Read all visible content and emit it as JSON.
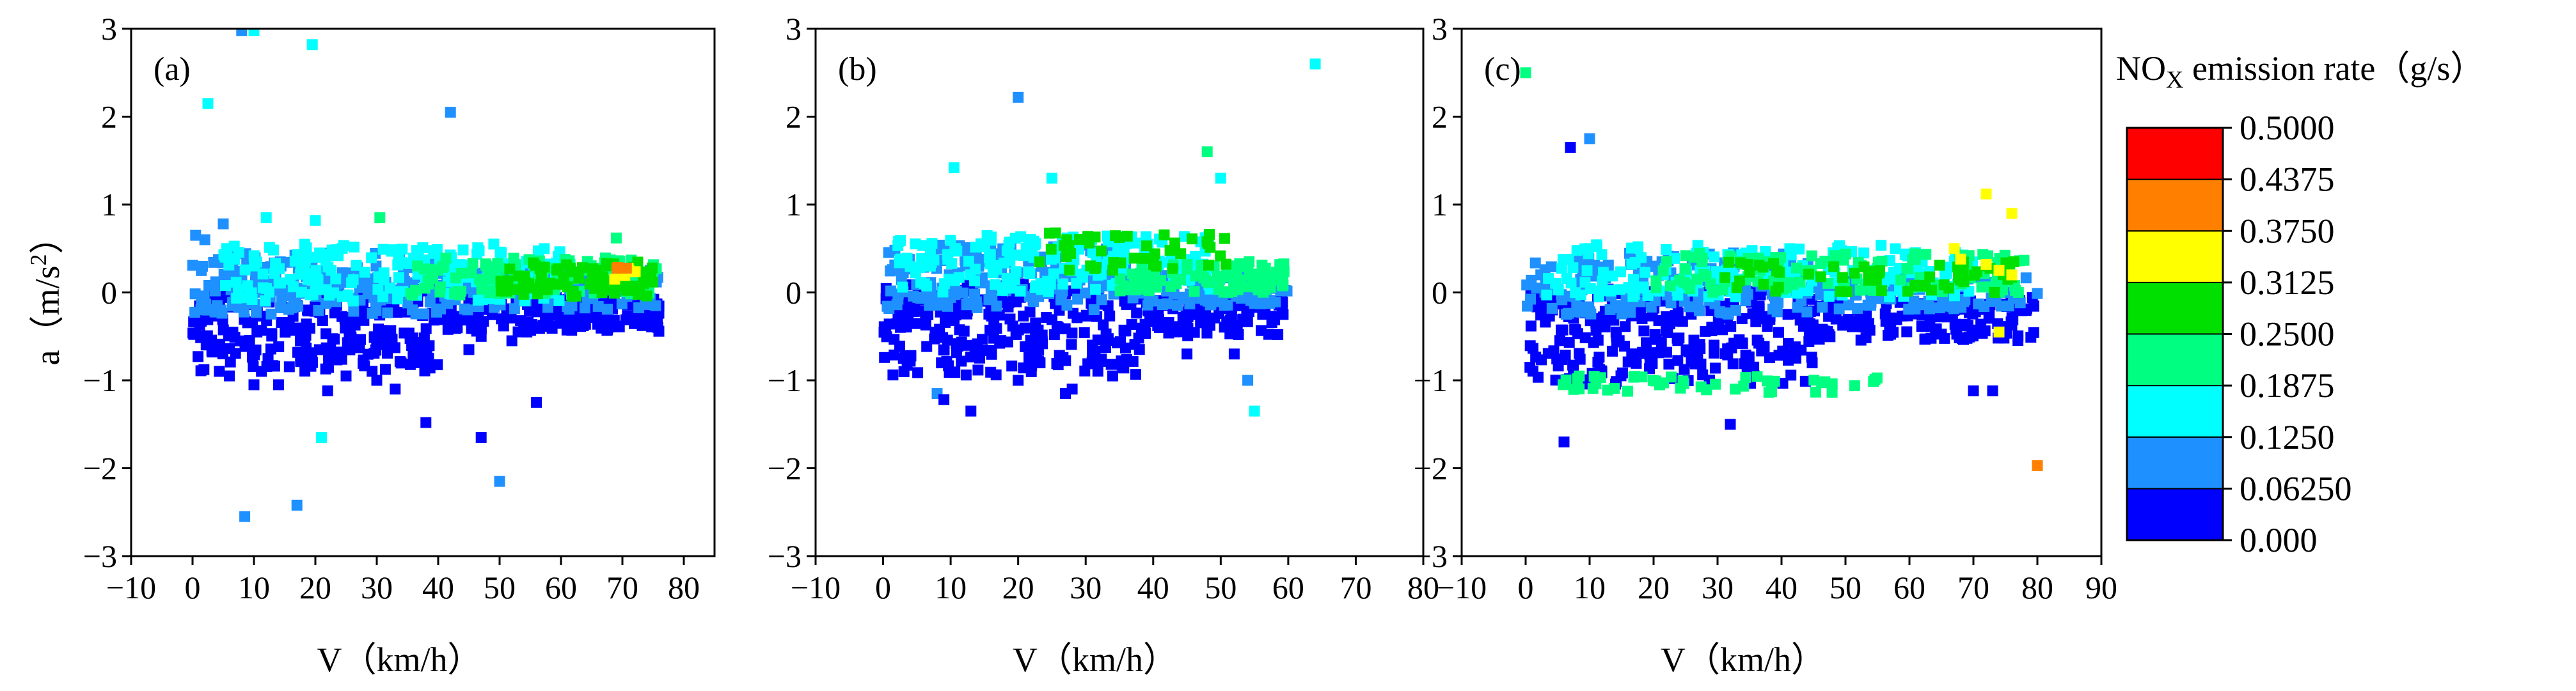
{
  "figure": {
    "colorbar": {
      "title_main": "NO",
      "title_sub": "X",
      "title_rest": " emission rate（g/s）",
      "levels": [
        "0.000",
        "0.06250",
        "0.1250",
        "0.1875",
        "0.2500",
        "0.3125",
        "0.3750",
        "0.4375",
        "0.5000"
      ],
      "colors": [
        "#0000FF",
        "#1E90FF",
        "#00FFFF",
        "#00FF80",
        "#00E000",
        "#FFFF00",
        "#FF8000",
        "#FF0000"
      ]
    }
  },
  "chart_data": [
    {
      "type": "scatter",
      "panel_label": "(a)",
      "xlabel": "V（km/h）",
      "ylabel_main": "a（m/s",
      "ylabel_sup": "2",
      "ylabel_end": "）",
      "xlim": [
        -10,
        85
      ],
      "ylim": [
        -3,
        3
      ],
      "xticks": [
        "−10",
        "0",
        "10",
        "20",
        "30",
        "40",
        "50",
        "60",
        "70",
        "80"
      ],
      "yticks": [
        "−3",
        "−2",
        "−1",
        "0",
        "1",
        "2",
        "3"
      ],
      "points": [
        [
          8,
          2.98,
          1
        ],
        [
          10,
          2.98,
          2
        ],
        [
          19.5,
          2.82,
          2
        ],
        [
          2.5,
          2.15,
          2
        ],
        [
          42,
          2.05,
          1
        ],
        [
          21,
          -1.65,
          2
        ],
        [
          17,
          -2.42,
          1
        ],
        [
          8.5,
          -2.55,
          1
        ],
        [
          38,
          -1.48,
          0
        ],
        [
          47,
          -1.65,
          0
        ],
        [
          50,
          -2.15,
          1
        ],
        [
          56,
          -1.25,
          0
        ],
        [
          30.5,
          0.85,
          3
        ],
        [
          69,
          0.62,
          3
        ],
        [
          12,
          0.85,
          2
        ],
        [
          20,
          0.82,
          2
        ],
        [
          5,
          0.78,
          1
        ],
        [
          0.5,
          0.65,
          1
        ],
        [
          2,
          0.6,
          1
        ],
        [
          14,
          -1.05,
          0
        ],
        [
          22,
          -1.12,
          0
        ],
        [
          25,
          -0.95,
          0
        ],
        [
          30,
          -1.0,
          0
        ],
        [
          33,
          -1.1,
          0
        ],
        [
          10,
          -1.05,
          0
        ],
        [
          6,
          -0.95,
          0
        ],
        [
          52,
          -0.55,
          0
        ],
        [
          47,
          -0.5,
          0
        ],
        [
          45,
          -0.65,
          0
        ],
        [
          4,
          -0.6,
          0
        ]
      ],
      "clusters": [
        {
          "x": [
            0,
            40
          ],
          "y": [
            -0.9,
            0.05
          ],
          "n": 260,
          "level": 0
        },
        {
          "x": [
            40,
            76
          ],
          "y": [
            -0.45,
            -0.05
          ],
          "n": 170,
          "level": 0
        },
        {
          "x": [
            0,
            40
          ],
          "y": [
            -0.25,
            0.45
          ],
          "n": 170,
          "level": 1
        },
        {
          "x": [
            40,
            76
          ],
          "y": [
            -0.2,
            0.3
          ],
          "n": 110,
          "level": 1
        },
        {
          "x": [
            5,
            62
          ],
          "y": [
            -0.1,
            0.55
          ],
          "n": 190,
          "level": 2
        },
        {
          "x": [
            35,
            76
          ],
          "y": [
            -0.05,
            0.4
          ],
          "n": 110,
          "level": 3
        },
        {
          "x": [
            50,
            76
          ],
          "y": [
            -0.05,
            0.35
          ],
          "n": 80,
          "level": 4
        },
        {
          "x": [
            68,
            74
          ],
          "y": [
            0.15,
            0.3
          ],
          "n": 6,
          "level": 5
        },
        {
          "x": [
            69,
            72
          ],
          "y": [
            0.2,
            0.3
          ],
          "n": 3,
          "level": 6
        }
      ]
    },
    {
      "type": "scatter",
      "panel_label": "(b)",
      "xlabel": "V（km/h）",
      "ylabel_main": "",
      "ylabel_sup": "",
      "ylabel_end": "",
      "xlim": [
        -10,
        80
      ],
      "ylim": [
        -3,
        3
      ],
      "xticks": [
        "−10",
        "0",
        "10",
        "20",
        "30",
        "40",
        "50",
        "60",
        "70",
        "80"
      ],
      "yticks": [
        "−3",
        "−2",
        "−1",
        "0",
        "1",
        "2",
        "3"
      ],
      "points": [
        [
          64,
          2.6,
          2
        ],
        [
          20,
          2.22,
          1
        ],
        [
          10.5,
          1.42,
          2
        ],
        [
          48,
          1.6,
          3
        ],
        [
          50,
          1.3,
          2
        ],
        [
          25,
          1.3,
          2
        ],
        [
          54,
          -1.0,
          1
        ],
        [
          55,
          -1.35,
          2
        ],
        [
          8,
          -1.15,
          1
        ],
        [
          9,
          -1.22,
          0
        ],
        [
          13,
          -1.35,
          0
        ],
        [
          28,
          -1.1,
          0
        ],
        [
          27,
          -1.15,
          0
        ],
        [
          45,
          -0.7,
          0
        ],
        [
          52,
          -0.7,
          0
        ],
        [
          3,
          -0.75,
          0
        ],
        [
          20,
          -1.0,
          0
        ],
        [
          34,
          -0.95,
          0
        ]
      ],
      "clusters": [
        {
          "x": [
            0,
            38
          ],
          "y": [
            -0.95,
            0.1
          ],
          "n": 250,
          "level": 0
        },
        {
          "x": [
            38,
            60
          ],
          "y": [
            -0.5,
            -0.05
          ],
          "n": 110,
          "level": 0
        },
        {
          "x": [
            0,
            36
          ],
          "y": [
            -0.2,
            0.55
          ],
          "n": 170,
          "level": 1
        },
        {
          "x": [
            36,
            60
          ],
          "y": [
            -0.15,
            0.2
          ],
          "n": 90,
          "level": 1
        },
        {
          "x": [
            2,
            50
          ],
          "y": [
            0.0,
            0.65
          ],
          "n": 180,
          "level": 2
        },
        {
          "x": [
            35,
            60
          ],
          "y": [
            0.0,
            0.35
          ],
          "n": 90,
          "level": 3
        },
        {
          "x": [
            22,
            52
          ],
          "y": [
            0.25,
            0.7
          ],
          "n": 45,
          "level": 4
        }
      ]
    },
    {
      "type": "scatter",
      "panel_label": "(c)",
      "xlabel": "V（km/h）",
      "ylabel_main": "",
      "ylabel_sup": "",
      "ylabel_end": "",
      "xlim": [
        -10,
        90
      ],
      "ylim": [
        -3,
        3
      ],
      "xticks": [
        "−10",
        "0",
        "10",
        "20",
        "30",
        "40",
        "50",
        "60",
        "70",
        "80",
        "90"
      ],
      "yticks": [
        "−3",
        "−2",
        "−1",
        "0",
        "1",
        "2",
        "3"
      ],
      "points": [
        [
          0,
          2.5,
          3
        ],
        [
          10,
          1.75,
          1
        ],
        [
          7,
          1.65,
          0
        ],
        [
          72,
          1.12,
          5
        ],
        [
          76,
          0.9,
          5
        ],
        [
          80,
          -1.97,
          6
        ],
        [
          74,
          -0.45,
          5
        ],
        [
          6,
          -1.7,
          0
        ],
        [
          32,
          -1.5,
          0
        ],
        [
          70,
          -1.12,
          0
        ],
        [
          73,
          -1.12,
          0
        ],
        [
          67,
          0.5,
          5
        ],
        [
          68,
          0.38,
          5
        ],
        [
          72,
          0.32,
          5
        ],
        [
          74,
          0.25,
          5
        ],
        [
          76,
          0.2,
          5
        ]
      ],
      "clusters": [
        {
          "x": [
            0,
            45
          ],
          "y": [
            -1.05,
            0.05
          ],
          "n": 260,
          "level": 0
        },
        {
          "x": [
            45,
            80
          ],
          "y": [
            -0.55,
            -0.05
          ],
          "n": 140,
          "level": 0
        },
        {
          "x": [
            0,
            45
          ],
          "y": [
            -0.25,
            0.45
          ],
          "n": 170,
          "level": 1
        },
        {
          "x": [
            45,
            80
          ],
          "y": [
            -0.2,
            0.2
          ],
          "n": 90,
          "level": 1
        },
        {
          "x": [
            3,
            70
          ],
          "y": [
            -0.05,
            0.55
          ],
          "n": 190,
          "level": 2
        },
        {
          "x": [
            20,
            78
          ],
          "y": [
            0.0,
            0.45
          ],
          "n": 120,
          "level": 3
        },
        {
          "x": [
            5,
            55
          ],
          "y": [
            -1.15,
            -0.95
          ],
          "n": 45,
          "level": 3
        },
        {
          "x": [
            30,
            78
          ],
          "y": [
            0.0,
            0.35
          ],
          "n": 60,
          "level": 4
        }
      ]
    }
  ]
}
